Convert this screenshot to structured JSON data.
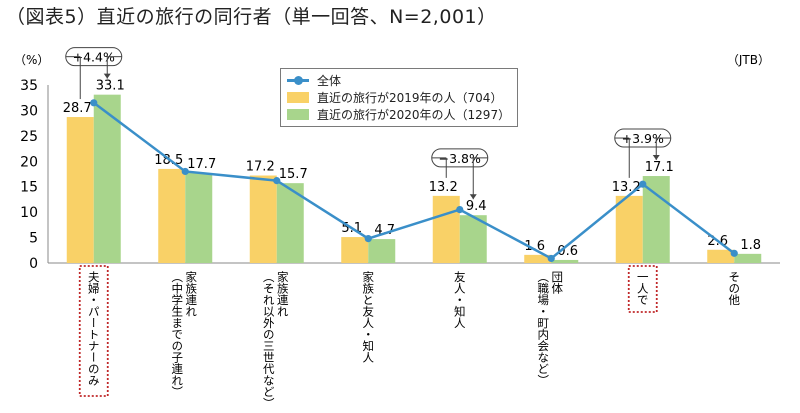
{
  "title": "（図表5）直近の旅行の同行者（単一回答、N=2,001）",
  "source": "（JTB）",
  "colors": {
    "bar2019": "#f9d167",
    "bar2020": "#a8d58c",
    "line": "#3a8fc9",
    "highlight": "#c0282a"
  },
  "chart_data": {
    "type": "bar",
    "title": "（図表5）直近の旅行の同行者（単一回答、N=2,001）",
    "ylabel": "（%）",
    "ylim": [
      0,
      35
    ],
    "yticks": [
      0,
      5,
      10,
      15,
      20,
      25,
      30,
      35
    ],
    "categories": [
      "夫婦・パートナーのみ",
      "家族連れ（中学生までの子連れ）",
      "家族連れ（それ以外の三世代など）",
      "家族と友人・知人",
      "友人・知人",
      "団体（職場・町内会など）",
      "一人で",
      "その他"
    ],
    "series": [
      {
        "name": "全体",
        "kind": "line",
        "values": [
          31.5,
          18.0,
          16.2,
          4.8,
          10.5,
          0.9,
          15.5,
          1.9
        ]
      },
      {
        "name": "直近の旅行が2019年の人（704）",
        "kind": "bar",
        "values": [
          28.7,
          18.5,
          17.2,
          5.1,
          13.2,
          1.6,
          13.2,
          2.6
        ]
      },
      {
        "name": "直近の旅行が2020年の人（1297）",
        "kind": "bar",
        "values": [
          33.1,
          17.7,
          15.7,
          4.7,
          9.4,
          0.6,
          17.1,
          1.8
        ]
      }
    ],
    "data_labels_2019": [
      "28.7",
      "18.5",
      "17.2",
      "5.1",
      "13.2",
      "1.6",
      "13.2",
      "2.6"
    ],
    "data_labels_2020": [
      "33.1",
      "17.7",
      "15.7",
      "4.7",
      "9.4",
      "0.6",
      "17.1",
      "1.8"
    ],
    "annotations": [
      {
        "category_index": 0,
        "text": "+4.4%"
      },
      {
        "category_index": 4,
        "text": "−3.8%"
      },
      {
        "category_index": 6,
        "text": "+3.9%"
      }
    ],
    "highlighted_categories": [
      0,
      6
    ],
    "legend": "top-center",
    "grid": false
  }
}
